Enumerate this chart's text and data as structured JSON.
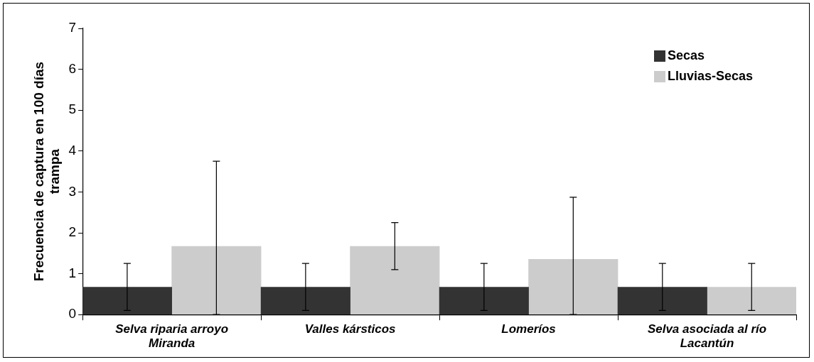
{
  "chart_data": {
    "type": "bar",
    "ylabel": "Frecuencia de captura en 100 días trampa",
    "categories": [
      "Selva riparia arroyo Miranda",
      "Valles kársticos",
      "Lomeríos",
      "Selva asociada al río Lacantún"
    ],
    "series": [
      {
        "name": "Secas",
        "color": "#333333",
        "values": [
          0.67,
          0.67,
          0.67,
          0.67
        ],
        "errors": [
          [
            0.1,
            1.25
          ],
          [
            0.1,
            1.25
          ],
          [
            0.1,
            1.25
          ],
          [
            0.1,
            1.25
          ]
        ]
      },
      {
        "name": "Lluvias-Secas",
        "color": "#cccccc",
        "values": [
          1.67,
          1.67,
          1.35,
          0.67
        ],
        "errors": [
          [
            0,
            3.75
          ],
          [
            1.1,
            2.25
          ],
          [
            0,
            2.87
          ],
          [
            0.1,
            1.25
          ]
        ]
      }
    ],
    "ylim": [
      0,
      7
    ],
    "yticks": [
      0,
      1,
      2,
      3,
      4,
      5,
      6,
      7
    ],
    "grid": false,
    "legend": "top right"
  }
}
